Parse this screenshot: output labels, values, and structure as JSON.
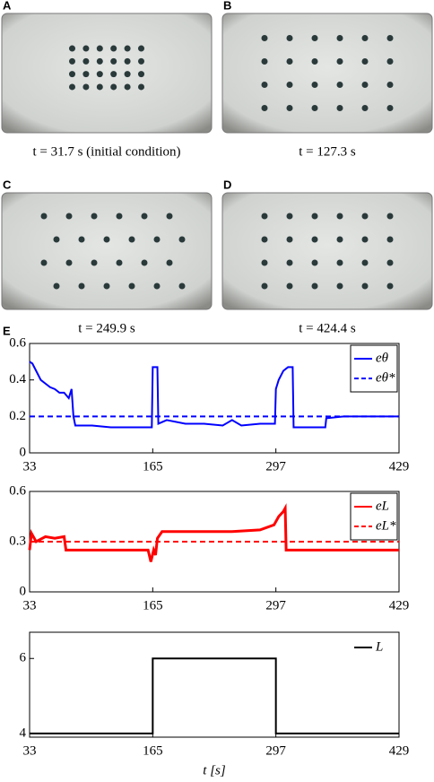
{
  "photos": [
    {
      "label": "A",
      "caption": "t = 31.7 s (initial condition)"
    },
    {
      "label": "B",
      "caption": "t = 127.3 s"
    },
    {
      "label": "C",
      "caption": "t = 249.9 s"
    },
    {
      "label": "D",
      "caption": "t = 424.4 s"
    }
  ],
  "panel_label": "E",
  "chart_data": [
    {
      "type": "line",
      "xlim": [
        33,
        429
      ],
      "xticks": [
        33,
        165,
        297,
        429
      ],
      "ylim": [
        0,
        0.6
      ],
      "yticks": [
        0,
        0.2,
        0.4,
        0.6
      ],
      "legend": "upper right",
      "legend_box": true,
      "series": [
        {
          "name": "eθ",
          "color": "#0000ff",
          "linestyle": "solid",
          "x": [
            33,
            36,
            40,
            45,
            50,
            55,
            60,
            65,
            70,
            75,
            78,
            80,
            82,
            90,
            100,
            120,
            140,
            160,
            164,
            165,
            170,
            171,
            180,
            200,
            220,
            240,
            250,
            260,
            280,
            296,
            297,
            300,
            305,
            310,
            315,
            316,
            330,
            350,
            351,
            370,
            390,
            410,
            429
          ],
          "values": [
            0.5,
            0.49,
            0.45,
            0.4,
            0.38,
            0.36,
            0.35,
            0.33,
            0.33,
            0.3,
            0.35,
            0.2,
            0.15,
            0.15,
            0.15,
            0.14,
            0.14,
            0.14,
            0.14,
            0.47,
            0.47,
            0.16,
            0.18,
            0.16,
            0.16,
            0.15,
            0.18,
            0.15,
            0.16,
            0.16,
            0.35,
            0.4,
            0.45,
            0.47,
            0.47,
            0.14,
            0.14,
            0.14,
            0.19,
            0.2,
            0.2,
            0.2,
            0.2
          ]
        },
        {
          "name": "eθ*",
          "color": "#0000ff",
          "linestyle": "dashed",
          "x": [
            33,
            429
          ],
          "values": [
            0.2,
            0.2
          ]
        }
      ]
    },
    {
      "type": "line",
      "xlim": [
        33,
        429
      ],
      "xticks": [
        33,
        165,
        297,
        429
      ],
      "ylim": [
        0,
        0.6
      ],
      "yticks": [
        0,
        0.3,
        0.6
      ],
      "legend": "upper right",
      "legend_box": true,
      "series": [
        {
          "name": "eL",
          "color": "#ff0000",
          "linestyle": "solid",
          "x": [
            33,
            35,
            40,
            50,
            60,
            70,
            72,
            90,
            120,
            150,
            160,
            163,
            166,
            168,
            170,
            175,
            200,
            250,
            280,
            295,
            300,
            305,
            307,
            308,
            330,
            360,
            400,
            429
          ],
          "values": [
            0.25,
            0.35,
            0.3,
            0.33,
            0.32,
            0.33,
            0.25,
            0.25,
            0.25,
            0.25,
            0.25,
            0.18,
            0.25,
            0.22,
            0.32,
            0.36,
            0.36,
            0.36,
            0.37,
            0.4,
            0.45,
            0.48,
            0.5,
            0.25,
            0.25,
            0.25,
            0.25,
            0.25
          ]
        },
        {
          "name": "eL*",
          "color": "#ff0000",
          "linestyle": "dashed",
          "x": [
            33,
            429
          ],
          "values": [
            0.3,
            0.3
          ]
        }
      ]
    },
    {
      "type": "line",
      "xlim": [
        33,
        429
      ],
      "xticks": [
        33,
        165,
        297,
        429
      ],
      "ylim": [
        3.9,
        6.7
      ],
      "yticks": [
        4,
        6
      ],
      "legend": "upper right",
      "legend_box": false,
      "xlabel": "t [s]",
      "series": [
        {
          "name": "L",
          "color": "#000000",
          "linestyle": "solid",
          "x": [
            33,
            165,
            165,
            297,
            297,
            429
          ],
          "values": [
            4,
            4,
            6,
            6,
            4,
            4
          ]
        }
      ]
    }
  ]
}
